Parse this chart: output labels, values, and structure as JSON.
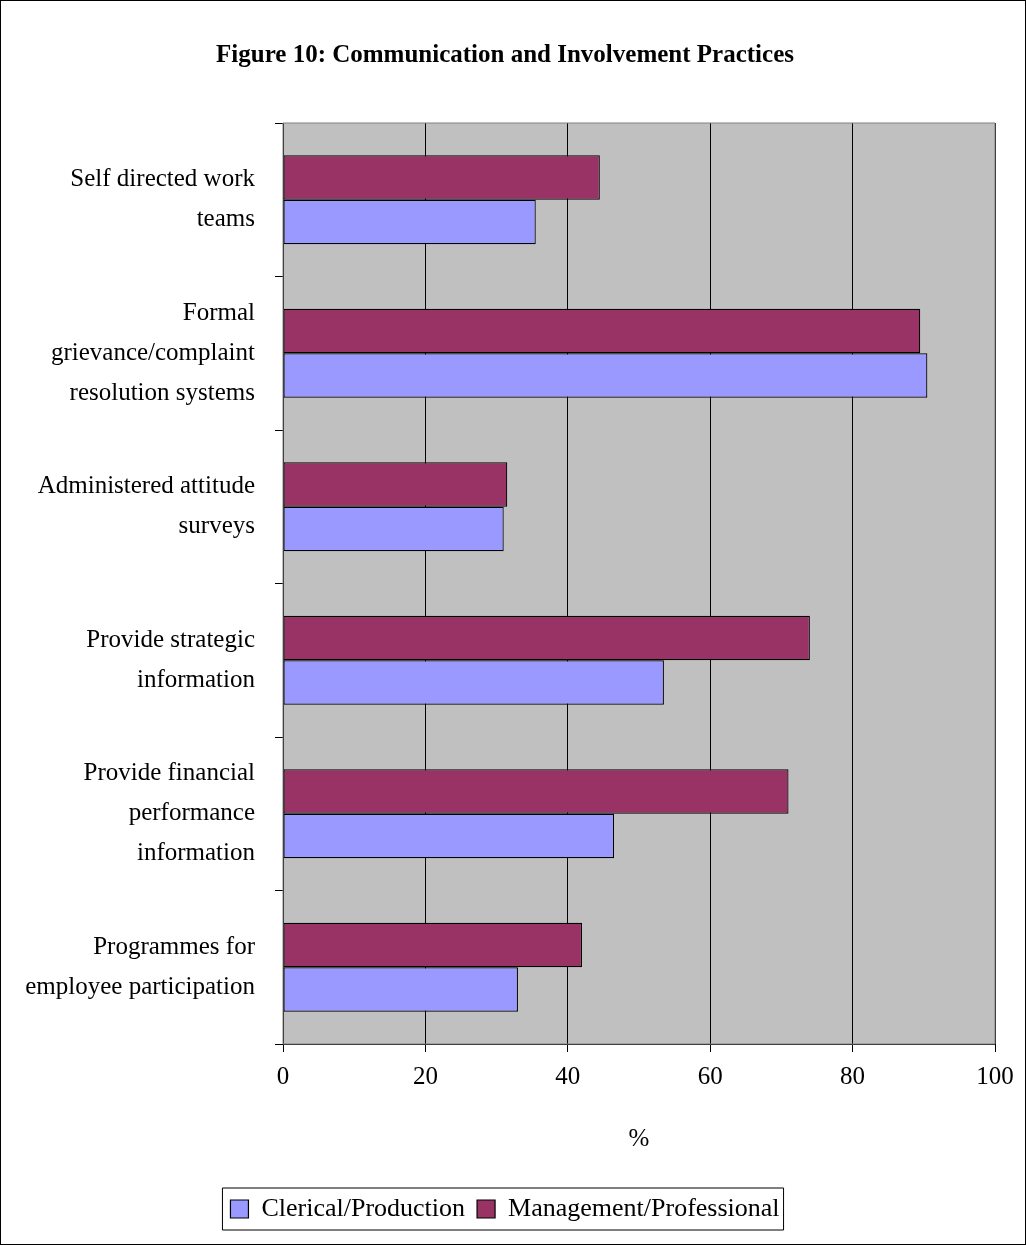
{
  "chart_data": {
    "type": "bar",
    "orientation": "horizontal",
    "title": "Figure 10: Communication and Involvement Practices",
    "xlabel": "%",
    "categories": [
      "Self directed work teams",
      "Formal grievance/complaint resolution systems",
      "Administered attitude surveys",
      "Provide strategic information",
      "Provide financial performance information",
      "Programmes for employee participation"
    ],
    "series": [
      {
        "name": "Clerical/Production",
        "color": "#9999ff",
        "values": [
          35.5,
          90.5,
          31,
          53.5,
          46.5,
          33
        ]
      },
      {
        "name": "Management/Professional",
        "color": "#993366",
        "values": [
          44.5,
          89.5,
          31.5,
          74,
          71,
          42
        ]
      }
    ],
    "xlim": [
      0,
      100
    ],
    "xticks": [
      0,
      20,
      40,
      60,
      80,
      100
    ],
    "grid": "x",
    "legend": "bottom"
  }
}
